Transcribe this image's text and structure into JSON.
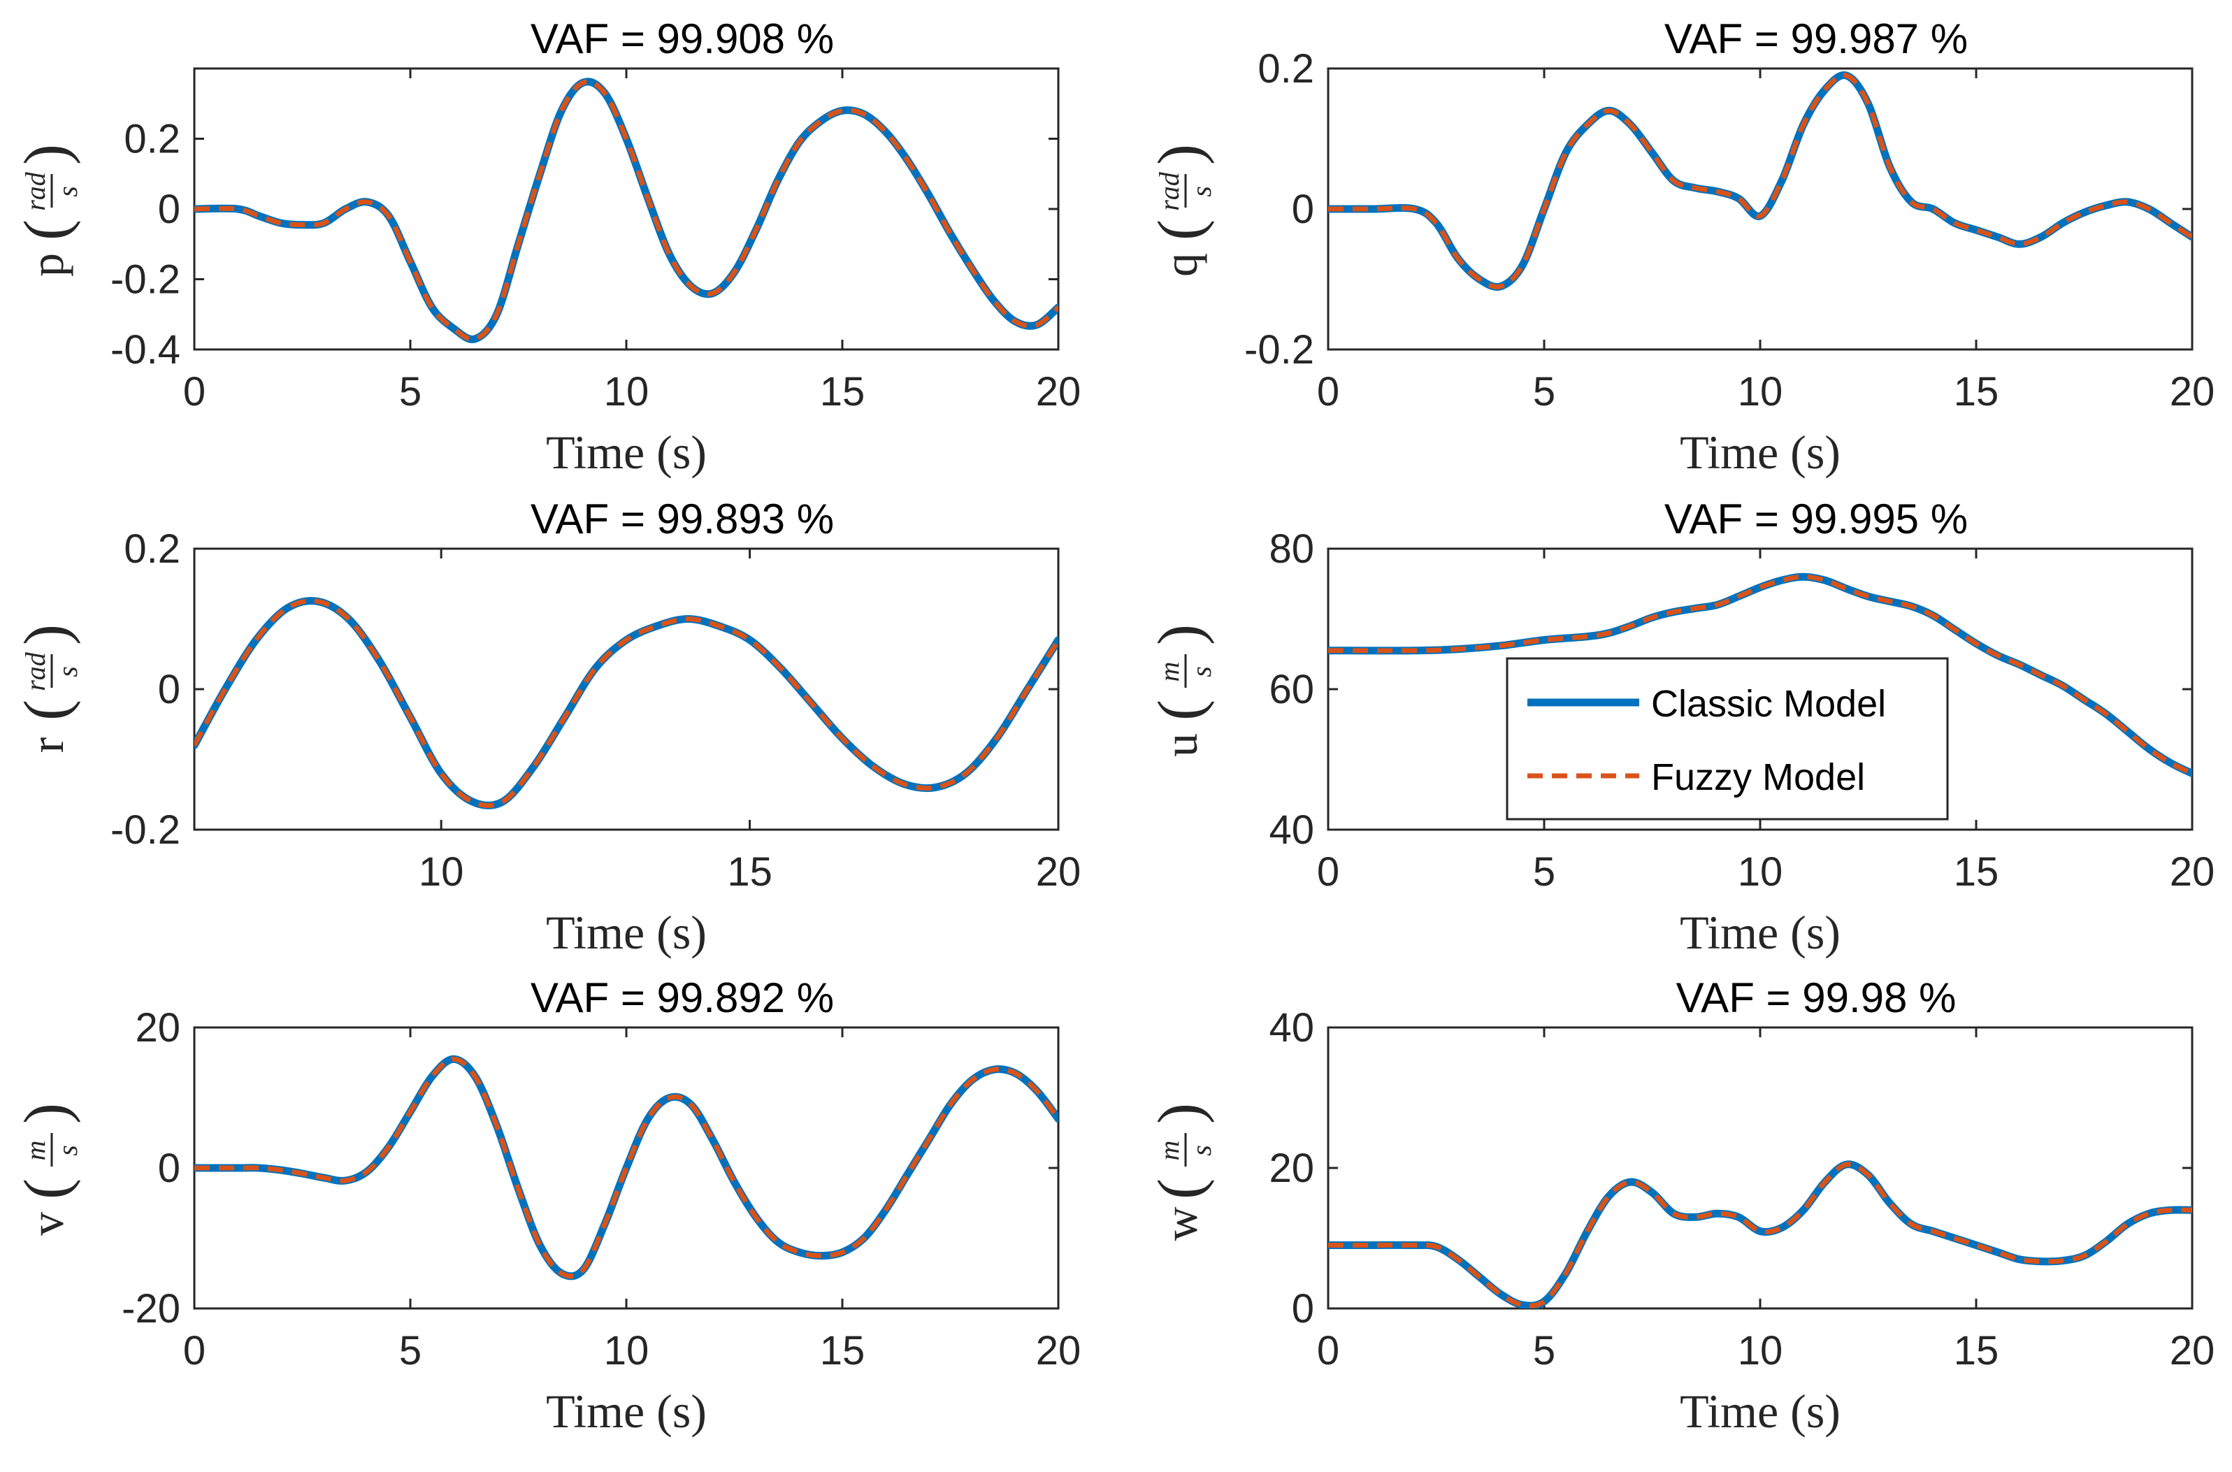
{
  "colors": {
    "classic": "#0072BD",
    "fuzzy": "#D95319",
    "axis": "#262626"
  },
  "legend": {
    "classic_label": "Classic Model",
    "fuzzy_label": "Fuzzy Model"
  },
  "chart_data": [
    {
      "type": "line",
      "name": "p",
      "title": "VAF = 99.908 %",
      "xlabel": "Time (s)",
      "ylabel_var": "p",
      "ylabel_unit_num": "rad",
      "ylabel_unit_den": "s",
      "xlim": [
        0,
        20
      ],
      "ylim": [
        -0.4,
        0.4
      ],
      "xticks": [
        0,
        5,
        10,
        15,
        20
      ],
      "xtick_labels": [
        "0",
        "5",
        "10",
        "15",
        "20"
      ],
      "yticks": [
        -0.4,
        -0.2,
        0,
        0.2
      ],
      "ytick_labels": [
        "-0.4",
        "-0.2",
        "0",
        "0.2"
      ],
      "x": [
        0,
        1,
        1.5,
        2,
        2.5,
        3,
        3.5,
        4,
        4.5,
        5,
        5.5,
        6,
        6.5,
        7,
        7.5,
        8,
        8.5,
        9,
        9.5,
        10,
        10.5,
        11,
        11.5,
        12,
        12.5,
        13,
        13.5,
        14,
        14.5,
        15,
        15.5,
        16,
        16.5,
        17,
        17.5,
        18,
        18.5,
        19,
        19.5,
        20
      ],
      "series": [
        {
          "name": "Classic Model",
          "values": [
            0,
            0,
            -0.02,
            -0.04,
            -0.045,
            -0.04,
            0.0,
            0.02,
            -0.02,
            -0.15,
            -0.28,
            -0.34,
            -0.37,
            -0.3,
            -0.1,
            0.1,
            0.28,
            0.36,
            0.33,
            0.2,
            0.03,
            -0.13,
            -0.22,
            -0.24,
            -0.18,
            -0.06,
            0.08,
            0.19,
            0.25,
            0.28,
            0.27,
            0.22,
            0.14,
            0.04,
            -0.07,
            -0.17,
            -0.26,
            -0.32,
            -0.33,
            -0.28
          ]
        },
        {
          "name": "Fuzzy Model",
          "values": [
            0,
            0,
            -0.02,
            -0.04,
            -0.045,
            -0.04,
            0.0,
            0.02,
            -0.02,
            -0.15,
            -0.28,
            -0.34,
            -0.37,
            -0.3,
            -0.1,
            0.1,
            0.28,
            0.36,
            0.33,
            0.2,
            0.03,
            -0.13,
            -0.22,
            -0.24,
            -0.18,
            -0.06,
            0.08,
            0.19,
            0.25,
            0.28,
            0.27,
            0.22,
            0.14,
            0.04,
            -0.07,
            -0.17,
            -0.26,
            -0.32,
            -0.33,
            -0.28
          ]
        }
      ]
    },
    {
      "type": "line",
      "name": "q",
      "title": "VAF = 99.987 %",
      "xlabel": "Time (s)",
      "ylabel_var": "q",
      "ylabel_unit_num": "rad",
      "ylabel_unit_den": "s",
      "xlim": [
        0,
        20
      ],
      "ylim": [
        -0.2,
        0.2
      ],
      "xticks": [
        0,
        5,
        10,
        15,
        20
      ],
      "xtick_labels": [
        "0",
        "5",
        "10",
        "15",
        "20"
      ],
      "yticks": [
        -0.2,
        0,
        0.2
      ],
      "ytick_labels": [
        "-0.2",
        "0",
        "0.2"
      ],
      "x": [
        0,
        1,
        2,
        2.5,
        3,
        3.5,
        4,
        4.5,
        5,
        5.5,
        6,
        6.5,
        7,
        7.5,
        8,
        8.5,
        9,
        9.5,
        10,
        10.5,
        11,
        11.5,
        12,
        12.5,
        13,
        13.5,
        14,
        14.5,
        15,
        15.5,
        16,
        16.5,
        17,
        17.5,
        18,
        18.5,
        19,
        19.5,
        20
      ],
      "series": [
        {
          "name": "Classic Model",
          "values": [
            0,
            0,
            0,
            -0.02,
            -0.07,
            -0.1,
            -0.11,
            -0.08,
            0.0,
            0.08,
            0.12,
            0.14,
            0.12,
            0.08,
            0.04,
            0.03,
            0.025,
            0.015,
            -0.01,
            0.04,
            0.12,
            0.17,
            0.19,
            0.15,
            0.06,
            0.01,
            0.0,
            -0.02,
            -0.03,
            -0.04,
            -0.05,
            -0.04,
            -0.02,
            -0.005,
            0.005,
            0.01,
            0.0,
            -0.02,
            -0.04
          ]
        },
        {
          "name": "Fuzzy Model",
          "values": [
            0,
            0,
            0,
            -0.02,
            -0.07,
            -0.1,
            -0.11,
            -0.08,
            0.0,
            0.08,
            0.12,
            0.14,
            0.12,
            0.08,
            0.04,
            0.03,
            0.025,
            0.015,
            -0.01,
            0.04,
            0.12,
            0.17,
            0.19,
            0.15,
            0.06,
            0.01,
            0.0,
            -0.02,
            -0.03,
            -0.04,
            -0.05,
            -0.04,
            -0.02,
            -0.005,
            0.005,
            0.01,
            0.0,
            -0.02,
            -0.04
          ]
        }
      ]
    },
    {
      "type": "line",
      "name": "r",
      "title": "VAF = 99.893 %",
      "xlabel": "Time (s)",
      "ylabel_var": "r",
      "ylabel_unit_num": "rad",
      "ylabel_unit_den": "s",
      "xlim": [
        6,
        20
      ],
      "ylim": [
        -0.2,
        0.2
      ],
      "xticks": [
        10,
        15,
        20
      ],
      "xtick_labels": [
        "10",
        "15",
        "20"
      ],
      "yticks": [
        -0.2,
        0,
        0.2
      ],
      "ytick_labels": [
        "-0.2",
        "0",
        "0.2"
      ],
      "x": [
        6,
        6.5,
        7,
        7.5,
        8,
        8.5,
        9,
        9.5,
        10,
        10.5,
        11,
        11.5,
        12,
        12.5,
        13,
        13.5,
        14,
        14.5,
        15,
        15.5,
        16,
        16.5,
        17,
        17.5,
        18,
        18.5,
        19,
        19.5,
        20
      ],
      "series": [
        {
          "name": "Classic Model",
          "values": [
            -0.08,
            0.0,
            0.07,
            0.115,
            0.125,
            0.1,
            0.04,
            -0.04,
            -0.12,
            -0.16,
            -0.16,
            -0.11,
            -0.04,
            0.03,
            0.07,
            0.09,
            0.1,
            0.09,
            0.07,
            0.03,
            -0.02,
            -0.07,
            -0.11,
            -0.135,
            -0.14,
            -0.12,
            -0.07,
            0.0,
            0.07
          ]
        },
        {
          "name": "Fuzzy Model",
          "values": [
            -0.08,
            0.0,
            0.07,
            0.115,
            0.125,
            0.1,
            0.04,
            -0.04,
            -0.12,
            -0.16,
            -0.16,
            -0.11,
            -0.04,
            0.03,
            0.07,
            0.09,
            0.1,
            0.09,
            0.07,
            0.03,
            -0.02,
            -0.07,
            -0.11,
            -0.135,
            -0.14,
            -0.12,
            -0.07,
            0.0,
            0.07
          ]
        }
      ]
    },
    {
      "type": "line",
      "name": "u",
      "title": "VAF = 99.995 %",
      "xlabel": "Time (s)",
      "ylabel_var": "u",
      "ylabel_unit_num": "m",
      "ylabel_unit_den": "s",
      "xlim": [
        0,
        20
      ],
      "ylim": [
        40,
        80
      ],
      "xticks": [
        0,
        5,
        10,
        15,
        20
      ],
      "xtick_labels": [
        "0",
        "5",
        "10",
        "15",
        "20"
      ],
      "yticks": [
        40,
        60,
        80
      ],
      "ytick_labels": [
        "40",
        "60",
        "80"
      ],
      "x": [
        0,
        2,
        3,
        4,
        5,
        6,
        6.5,
        7,
        7.5,
        8,
        8.5,
        9,
        9.5,
        10,
        10.5,
        11,
        11.5,
        12,
        12.5,
        13,
        13.5,
        14,
        14.5,
        15,
        15.5,
        16,
        16.5,
        17,
        17.5,
        18,
        18.5,
        19,
        19.5,
        20
      ],
      "series": [
        {
          "name": "Classic Model",
          "values": [
            65.5,
            65.5,
            65.7,
            66.2,
            67,
            67.5,
            68,
            69,
            70.2,
            71,
            71.5,
            72,
            73.2,
            74.5,
            75.5,
            76,
            75.5,
            74.3,
            73.2,
            72.5,
            71.8,
            70.5,
            68.5,
            66.5,
            64.8,
            63.5,
            62,
            60.5,
            58.5,
            56.5,
            54,
            51.5,
            49.5,
            48
          ]
        },
        {
          "name": "Fuzzy Model",
          "values": [
            65.5,
            65.5,
            65.7,
            66.2,
            67,
            67.5,
            68,
            69,
            70.2,
            71,
            71.5,
            72,
            73.2,
            74.5,
            75.5,
            76,
            75.5,
            74.3,
            73.2,
            72.5,
            71.8,
            70.5,
            68.5,
            66.5,
            64.8,
            63.5,
            62,
            60.5,
            58.5,
            56.5,
            54,
            51.5,
            49.5,
            48
          ]
        }
      ]
    },
    {
      "type": "line",
      "name": "v",
      "title": "VAF = 99.892 %",
      "xlabel": "Time (s)",
      "ylabel_var": "v",
      "ylabel_unit_num": "m",
      "ylabel_unit_den": "s",
      "xlim": [
        0,
        20
      ],
      "ylim": [
        -20,
        20
      ],
      "xticks": [
        0,
        5,
        10,
        15,
        20
      ],
      "xtick_labels": [
        "0",
        "5",
        "10",
        "15",
        "20"
      ],
      "yticks": [
        -20,
        0,
        20
      ],
      "ytick_labels": [
        "-20",
        "0",
        "20"
      ],
      "x": [
        0,
        1,
        1.5,
        2,
        2.5,
        3,
        3.5,
        4,
        4.5,
        5,
        5.5,
        6,
        6.5,
        7,
        7.5,
        8,
        8.5,
        9,
        9.5,
        10,
        10.5,
        11,
        11.5,
        12,
        12.5,
        13,
        13.5,
        14,
        14.5,
        15,
        15.5,
        16,
        16.5,
        17,
        17.5,
        18,
        18.5,
        19,
        19.5,
        20
      ],
      "series": [
        {
          "name": "Classic Model",
          "values": [
            0,
            0,
            0,
            -0.3,
            -0.8,
            -1.4,
            -1.8,
            -0.5,
            3,
            8,
            13,
            15.5,
            13,
            6,
            -3,
            -11,
            -15,
            -14.5,
            -8,
            0,
            7,
            10,
            9,
            4,
            -2,
            -7,
            -10.5,
            -12,
            -12.5,
            -12,
            -10,
            -6,
            -1,
            4,
            9,
            12.5,
            14,
            13.5,
            11,
            7
          ]
        },
        {
          "name": "Fuzzy Model",
          "values": [
            0,
            0,
            0,
            -0.3,
            -0.8,
            -1.4,
            -1.8,
            -0.5,
            3,
            8,
            13,
            15.5,
            13,
            6,
            -3,
            -11,
            -15,
            -14.5,
            -8,
            0,
            7,
            10,
            9,
            4,
            -2,
            -7,
            -10.5,
            -12,
            -12.5,
            -12,
            -10,
            -6,
            -1,
            4,
            9,
            12.5,
            14,
            13.5,
            11,
            7
          ]
        }
      ]
    },
    {
      "type": "line",
      "name": "w",
      "title": "VAF = 99.98 %",
      "xlabel": "Time (s)",
      "ylabel_var": "w",
      "ylabel_unit_num": "m",
      "ylabel_unit_den": "s",
      "xlim": [
        0,
        20
      ],
      "ylim": [
        0,
        40
      ],
      "xticks": [
        0,
        5,
        10,
        15,
        20
      ],
      "xtick_labels": [
        "0",
        "5",
        "10",
        "15",
        "20"
      ],
      "yticks": [
        0,
        20,
        40
      ],
      "ytick_labels": [
        "0",
        "20",
        "40"
      ],
      "x": [
        0,
        1,
        2,
        2.5,
        3,
        3.5,
        4,
        4.5,
        5,
        5.5,
        6,
        6.5,
        7,
        7.5,
        8,
        8.5,
        9,
        9.5,
        10,
        10.5,
        11,
        11.5,
        12,
        12.5,
        13,
        13.5,
        14,
        14.5,
        15,
        15.5,
        16,
        16.5,
        17,
        17.5,
        18,
        18.5,
        19,
        19.5,
        20
      ],
      "series": [
        {
          "name": "Classic Model",
          "values": [
            9,
            9,
            9,
            8.8,
            7,
            4.5,
            2,
            0.5,
            1,
            5,
            11,
            16,
            18,
            16.5,
            13.5,
            13,
            13.5,
            13,
            11,
            11.5,
            14,
            18,
            20.5,
            19,
            15,
            12,
            11,
            10,
            9,
            8,
            7,
            6.7,
            6.8,
            7.5,
            9.5,
            12,
            13.5,
            14,
            14
          ]
        },
        {
          "name": "Fuzzy Model",
          "values": [
            9,
            9,
            9,
            8.8,
            7,
            4.5,
            2,
            0.5,
            1,
            5,
            11,
            16,
            18,
            16.5,
            13.5,
            13,
            13.5,
            13,
            11,
            11.5,
            14,
            18,
            20.5,
            19,
            15,
            12,
            11,
            10,
            9,
            8,
            7,
            6.7,
            6.8,
            7.5,
            9.5,
            12,
            13.5,
            14,
            14
          ]
        }
      ]
    }
  ]
}
